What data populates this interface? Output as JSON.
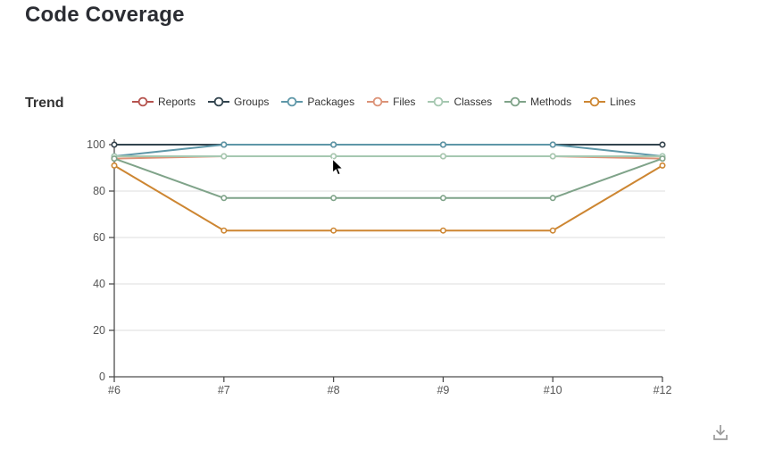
{
  "page": {
    "title": "Code Coverage"
  },
  "chart_data": {
    "type": "line",
    "title": "Trend",
    "x": [
      "#6",
      "#7",
      "#8",
      "#9",
      "#10",
      "#12"
    ],
    "xlabel": "",
    "ylabel": "",
    "ylim": [
      0,
      100
    ],
    "yticks": [
      0,
      20,
      40,
      60,
      80,
      100
    ],
    "grid": true,
    "legend_position": "top",
    "marker": "empty-circle",
    "series": [
      {
        "name": "Reports",
        "color": "#b5534e",
        "values": [
          100,
          100,
          100,
          100,
          100,
          100
        ]
      },
      {
        "name": "Groups",
        "color": "#32444e",
        "values": [
          100,
          100,
          100,
          100,
          100,
          100
        ]
      },
      {
        "name": "Packages",
        "color": "#5e97a8",
        "values": [
          95,
          100,
          100,
          100,
          100,
          95
        ]
      },
      {
        "name": "Files",
        "color": "#dc9378",
        "values": [
          94,
          95,
          95,
          95,
          95,
          94
        ]
      },
      {
        "name": "Classes",
        "color": "#a6c8b1",
        "values": [
          95,
          95,
          95,
          95,
          95,
          95
        ]
      },
      {
        "name": "Methods",
        "color": "#7fa389",
        "values": [
          94,
          77,
          77,
          77,
          77,
          94
        ]
      },
      {
        "name": "Lines",
        "color": "#cd8632",
        "values": [
          91,
          63,
          63,
          63,
          63,
          91
        ]
      }
    ],
    "axis_color": "#4d4d4d",
    "grid_color": "#dddddd",
    "tick_label_color": "#555555"
  },
  "toolbox": {
    "download_icon": "save-as-image"
  }
}
